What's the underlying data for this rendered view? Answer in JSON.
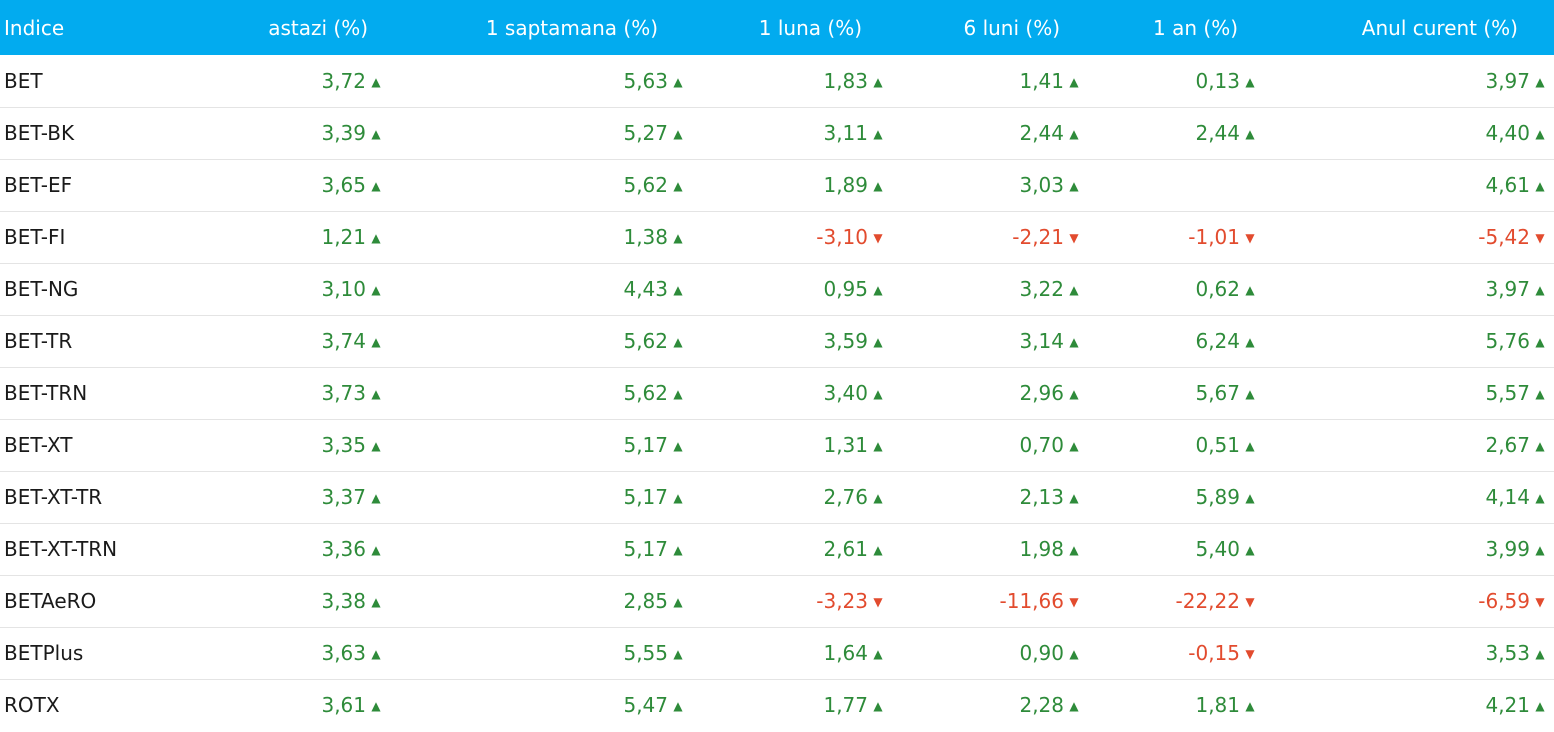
{
  "colors": {
    "header_bg": "#02abef",
    "up": "#2e8b3a",
    "down": "#e24b2e"
  },
  "icons": {
    "up": "triangle-up-icon",
    "down": "triangle-down-icon"
  },
  "columns": [
    "Indice",
    "astazi (%)",
    "1 saptamana (%)",
    "1 luna (%)",
    "6 luni (%)",
    "1 an (%)",
    "Anul curent (%)"
  ],
  "rows": [
    {
      "name": "BET",
      "values": [
        "3,72",
        "5,63",
        "1,83",
        "1,41",
        "0,13",
        "3,97"
      ]
    },
    {
      "name": "BET-BK",
      "values": [
        "3,39",
        "5,27",
        "3,11",
        "2,44",
        "2,44",
        "4,40"
      ]
    },
    {
      "name": "BET-EF",
      "values": [
        "3,65",
        "5,62",
        "1,89",
        "3,03",
        "",
        "4,61"
      ]
    },
    {
      "name": "BET-FI",
      "values": [
        "1,21",
        "1,38",
        "-3,10",
        "-2,21",
        "-1,01",
        "-5,42"
      ]
    },
    {
      "name": "BET-NG",
      "values": [
        "3,10",
        "4,43",
        "0,95",
        "3,22",
        "0,62",
        "3,97"
      ]
    },
    {
      "name": "BET-TR",
      "values": [
        "3,74",
        "5,62",
        "3,59",
        "3,14",
        "6,24",
        "5,76"
      ]
    },
    {
      "name": "BET-TRN",
      "values": [
        "3,73",
        "5,62",
        "3,40",
        "2,96",
        "5,67",
        "5,57"
      ]
    },
    {
      "name": "BET-XT",
      "values": [
        "3,35",
        "5,17",
        "1,31",
        "0,70",
        "0,51",
        "2,67"
      ]
    },
    {
      "name": "BET-XT-TR",
      "values": [
        "3,37",
        "5,17",
        "2,76",
        "2,13",
        "5,89",
        "4,14"
      ]
    },
    {
      "name": "BET-XT-TRN",
      "values": [
        "3,36",
        "5,17",
        "2,61",
        "1,98",
        "5,40",
        "3,99"
      ]
    },
    {
      "name": "BETAeRO",
      "values": [
        "3,38",
        "2,85",
        "-3,23",
        "-11,66",
        "-22,22",
        "-6,59"
      ]
    },
    {
      "name": "BETPlus",
      "values": [
        "3,63",
        "5,55",
        "1,64",
        "0,90",
        "-0,15",
        "3,53"
      ]
    },
    {
      "name": "ROTX",
      "values": [
        "3,61",
        "5,47",
        "1,77",
        "2,28",
        "1,81",
        "4,21"
      ]
    }
  ]
}
